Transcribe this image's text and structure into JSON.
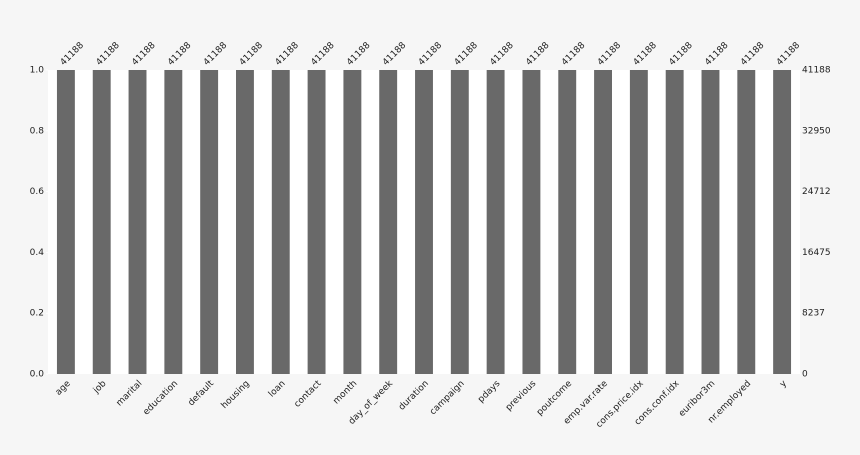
{
  "chart_data": {
    "type": "bar",
    "categories": [
      "age",
      "job",
      "marital",
      "education",
      "default",
      "housing",
      "loan",
      "contact",
      "month",
      "day_of_week",
      "duration",
      "campaign",
      "pdays",
      "previous",
      "poutcome",
      "emp.var.rate",
      "cons.price.idx",
      "cons.conf.idx",
      "euribor3m",
      "nr.employed",
      "y"
    ],
    "series": [
      {
        "color": "#696969",
        "axis": "y2",
        "values": [
          41188,
          41188,
          41188,
          41188,
          41188,
          41188,
          41188,
          41188,
          41188,
          41188,
          41188,
          41188,
          41188,
          41188,
          41188,
          41188,
          41188,
          41188,
          41188,
          41188,
          41188
        ]
      }
    ],
    "ylim": [
      0,
      1
    ],
    "yticks": [
      {
        "value": 0,
        "label": "0.0"
      },
      0.2,
      0.4,
      0.6,
      0.8,
      {
        "value": 1,
        "label": "1.0"
      }
    ],
    "y2lim": [
      0,
      41188
    ],
    "y2ticks": [
      0,
      8237,
      16475,
      24712,
      32950,
      41188
    ]
  }
}
